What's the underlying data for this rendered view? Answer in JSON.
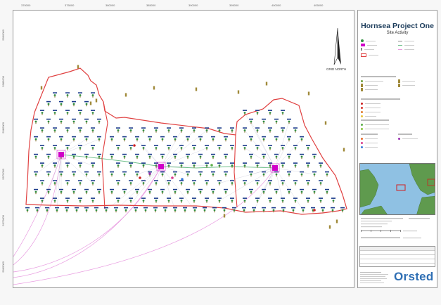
{
  "legend": {
    "title": "Hornsea Project One",
    "subtitle": "Site Activity",
    "orientation_label": "GRID NORTH",
    "north_arrow_icon": "north-arrow-icon",
    "brand": "Orsted",
    "colors": {
      "boundary": "#e04040",
      "cable_pink": "#e89ae0",
      "cable_green": "#6fbf8a",
      "turbine": "#2f8f3f",
      "turbine_label": "#1a3a8a",
      "substation": "#d000c8",
      "accent": "#2f6fb4"
    }
  },
  "map": {
    "top_ticks": [
      "370000",
      "375000",
      "380000",
      "385000",
      "390000",
      "395000",
      "400000",
      "405000"
    ],
    "left_ticks": [
      "5990000",
      "5985000",
      "5980000",
      "5975000",
      "5970000",
      "5965000"
    ]
  }
}
